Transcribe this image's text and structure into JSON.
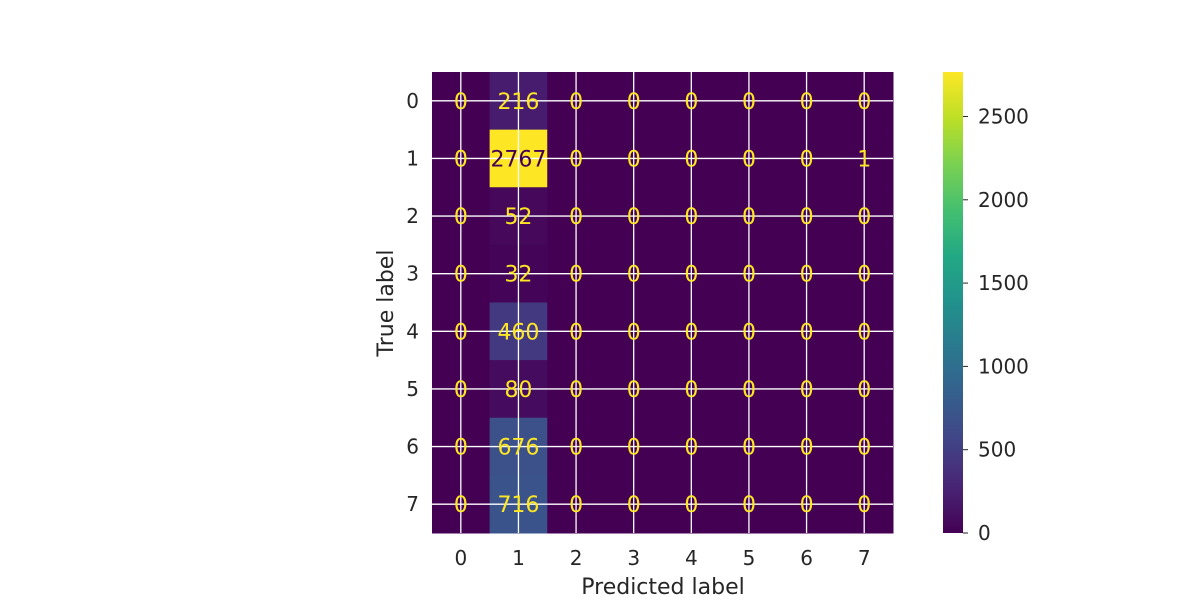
{
  "chart_data": {
    "type": "heatmap",
    "title": "",
    "xlabel": "Predicted label",
    "ylabel": "True label",
    "x_categories": [
      "0",
      "1",
      "2",
      "3",
      "4",
      "5",
      "6",
      "7"
    ],
    "y_categories": [
      "0",
      "1",
      "2",
      "3",
      "4",
      "5",
      "6",
      "7"
    ],
    "matrix": [
      [
        0,
        216,
        0,
        0,
        0,
        0,
        0,
        0
      ],
      [
        0,
        2767,
        0,
        0,
        0,
        0,
        0,
        1
      ],
      [
        0,
        52,
        0,
        0,
        0,
        0,
        0,
        0
      ],
      [
        0,
        32,
        0,
        0,
        0,
        0,
        0,
        0
      ],
      [
        0,
        460,
        0,
        0,
        0,
        0,
        0,
        0
      ],
      [
        0,
        80,
        0,
        0,
        0,
        0,
        0,
        0
      ],
      [
        0,
        676,
        0,
        0,
        0,
        0,
        0,
        0
      ],
      [
        0,
        716,
        0,
        0,
        0,
        0,
        0,
        0
      ]
    ],
    "colormap": "viridis",
    "value_range": [
      0,
      2767
    ],
    "colorbar_ticks": [
      0,
      500,
      1000,
      1500,
      2000,
      2500
    ],
    "annotation_color_light": "#fde725",
    "annotation_color_dark": "#440154",
    "grid": true
  }
}
